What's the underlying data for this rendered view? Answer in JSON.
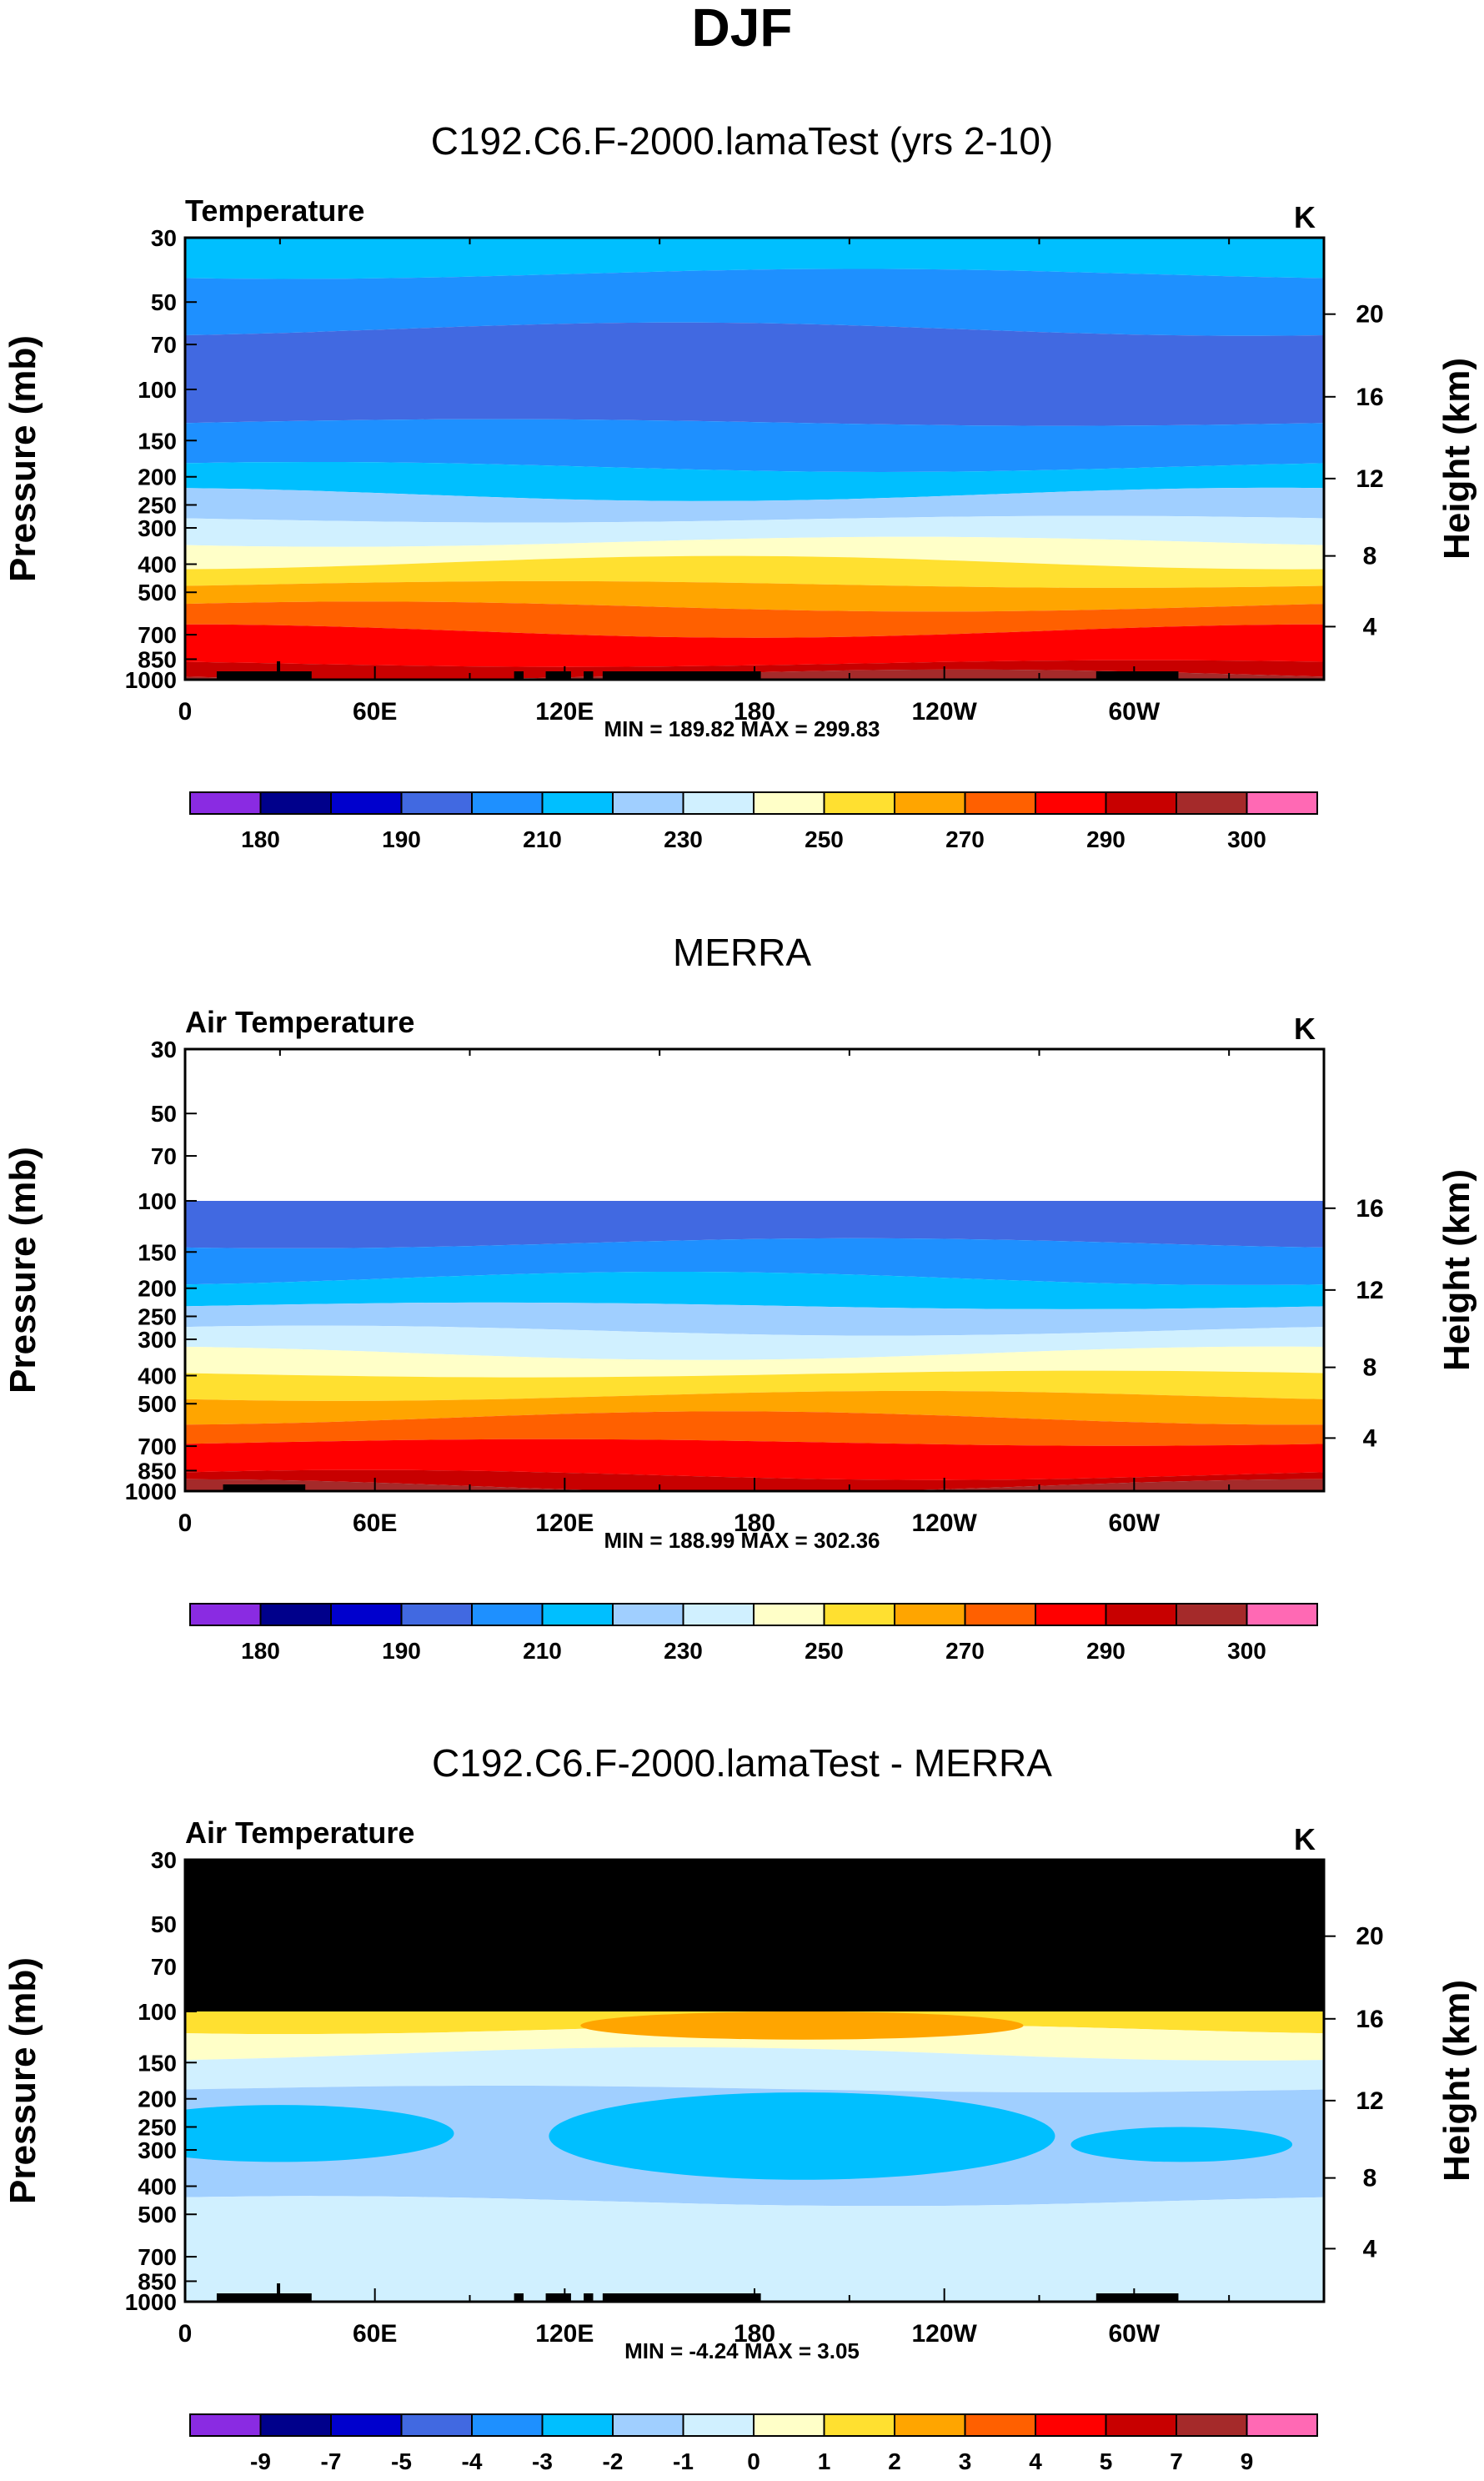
{
  "page": {
    "title": "DJF"
  },
  "colors": {
    "temp_bar": [
      "#8a2be2",
      "#00008b",
      "#0000cd",
      "#4169e1",
      "#1e90ff",
      "#00bfff",
      "#a0cfff",
      "#d0f0ff",
      "#ffffc8",
      "#ffe030",
      "#ffa500",
      "#ff6000",
      "#ff0000",
      "#c80000",
      "#a52a2a",
      "#ff69b4"
    ],
    "diff_bar": [
      "#8a2be2",
      "#00008b",
      "#0000cd",
      "#4169e1",
      "#1e90ff",
      "#00bfff",
      "#a0cfff",
      "#d0f0ff",
      "#ffffc8",
      "#ffe030",
      "#ffa500",
      "#ff6000",
      "#ff0000",
      "#c80000",
      "#a52a2a",
      "#ff69b4"
    ],
    "missing": "#000000",
    "terrain": "#000000"
  },
  "chart_data": [
    {
      "type": "contour",
      "title": "C192.C6.F-2000.lamaTest (yrs 2-10)",
      "left_label": "Temperature",
      "units": "K",
      "ylabel": "Pressure (mb)",
      "y2label": "Height (km)",
      "x_ticks": [
        "0",
        "60E",
        "120E",
        "180",
        "120W",
        "60W"
      ],
      "y_ticks": [
        "30",
        "50",
        "70",
        "100",
        "150",
        "200",
        "250",
        "300",
        "400",
        "500",
        "700",
        "850",
        "1000"
      ],
      "y2_ticks": [
        "20",
        "16",
        "12",
        "8",
        "4"
      ],
      "stats": "MIN = 189.82  MAX = 299.83",
      "colorbar_labels": [
        "180",
        "190",
        "210",
        "230",
        "250",
        "270",
        "290",
        "300"
      ],
      "levels": [
        185,
        190,
        200,
        210,
        220,
        230,
        240,
        250,
        260,
        270,
        280,
        290,
        295,
        300
      ],
      "ylim_mb": [
        30,
        1000
      ],
      "data_top_mb": 30,
      "bands": [
        {
          "p_top": 30,
          "p_bottom": 40,
          "color_idx": 5
        },
        {
          "p_top": 40,
          "p_bottom": 62,
          "color_idx": 4
        },
        {
          "p_top": 62,
          "p_bottom": 130,
          "color_idx": 3
        },
        {
          "p_top": 130,
          "p_bottom": 185,
          "color_idx": 4
        },
        {
          "p_top": 185,
          "p_bottom": 230,
          "color_idx": 5
        },
        {
          "p_top": 230,
          "p_bottom": 280,
          "color_idx": 6
        },
        {
          "p_top": 280,
          "p_bottom": 335,
          "color_idx": 7
        },
        {
          "p_top": 335,
          "p_bottom": 395,
          "color_idx": 8
        },
        {
          "p_top": 395,
          "p_bottom": 470,
          "color_idx": 9
        },
        {
          "p_top": 470,
          "p_bottom": 560,
          "color_idx": 10
        },
        {
          "p_top": 560,
          "p_bottom": 680,
          "color_idx": 11
        },
        {
          "p_top": 680,
          "p_bottom": 880,
          "color_idx": 12
        },
        {
          "p_top": 880,
          "p_bottom": 960,
          "color_idx": 13
        },
        {
          "p_top": 960,
          "p_bottom": 1000,
          "color_idx": 14
        }
      ]
    },
    {
      "type": "contour",
      "title": "MERRA",
      "left_label": "Air Temperature",
      "units": "K",
      "ylabel": "Pressure (mb)",
      "y2label": "Height (km)",
      "x_ticks": [
        "0",
        "60E",
        "120E",
        "180",
        "120W",
        "60W"
      ],
      "y_ticks": [
        "30",
        "50",
        "70",
        "100",
        "150",
        "200",
        "250",
        "300",
        "400",
        "500",
        "700",
        "850",
        "1000"
      ],
      "y2_ticks": [
        "16",
        "12",
        "8",
        "4"
      ],
      "stats": "MIN = 188.99  MAX = 302.36",
      "colorbar_labels": [
        "180",
        "190",
        "210",
        "230",
        "250",
        "270",
        "290",
        "300"
      ],
      "levels": [
        185,
        190,
        200,
        210,
        220,
        230,
        240,
        250,
        260,
        270,
        280,
        290,
        295,
        300
      ],
      "ylim_mb": [
        30,
        1000
      ],
      "data_top_mb": 100,
      "bands": [
        {
          "p_top": 100,
          "p_bottom": 140,
          "color_idx": 3
        },
        {
          "p_top": 140,
          "p_bottom": 185,
          "color_idx": 4
        },
        {
          "p_top": 185,
          "p_bottom": 230,
          "color_idx": 5
        },
        {
          "p_top": 230,
          "p_bottom": 280,
          "color_idx": 6
        },
        {
          "p_top": 280,
          "p_bottom": 335,
          "color_idx": 7
        },
        {
          "p_top": 335,
          "p_bottom": 395,
          "color_idx": 8
        },
        {
          "p_top": 395,
          "p_bottom": 470,
          "color_idx": 9
        },
        {
          "p_top": 470,
          "p_bottom": 560,
          "color_idx": 10
        },
        {
          "p_top": 560,
          "p_bottom": 680,
          "color_idx": 11
        },
        {
          "p_top": 680,
          "p_bottom": 880,
          "color_idx": 12
        },
        {
          "p_top": 880,
          "p_bottom": 960,
          "color_idx": 13
        },
        {
          "p_top": 960,
          "p_bottom": 1000,
          "color_idx": 14
        }
      ]
    },
    {
      "type": "contour",
      "title": "C192.C6.F-2000.lamaTest - MERRA",
      "left_label": "Air Temperature",
      "units": "K",
      "ylabel": "Pressure (mb)",
      "y2label": "Height (km)",
      "x_ticks": [
        "0",
        "60E",
        "120E",
        "180",
        "120W",
        "60W"
      ],
      "y_ticks": [
        "30",
        "50",
        "70",
        "100",
        "150",
        "200",
        "250",
        "300",
        "400",
        "500",
        "700",
        "850",
        "1000"
      ],
      "y2_ticks": [
        "20",
        "16",
        "12",
        "8",
        "4"
      ],
      "stats": "MIN = -4.24  MAX = 3.05",
      "colorbar_labels": [
        "-9",
        "-7",
        "-5",
        "-4",
        "-3",
        "-2",
        "-1",
        "0",
        "1",
        "2",
        "3",
        "4",
        "5",
        "7",
        "9"
      ],
      "levels": [
        -9,
        -7,
        -5,
        -4,
        -3,
        -2,
        -1,
        0,
        1,
        2,
        3,
        4,
        5,
        7,
        9
      ],
      "ylim_mb": [
        30,
        1000
      ],
      "missing_above_mb": 100,
      "bands": [
        {
          "p_top": 100,
          "p_bottom": 115,
          "color_idx": 9
        },
        {
          "p_top": 115,
          "p_bottom": 140,
          "color_idx": 8
        },
        {
          "p_top": 140,
          "p_bottom": 185,
          "color_idx": 7
        },
        {
          "p_top": 185,
          "p_bottom": 450,
          "color_idx": 6
        },
        {
          "p_top": 450,
          "p_bottom": 1000,
          "color_idx": 7
        }
      ],
      "blobs": [
        {
          "lon": 30,
          "p_top": 210,
          "p_bottom": 330,
          "lon_width": 55,
          "color_idx": 5
        },
        {
          "lon": 195,
          "p_top": 190,
          "p_bottom": 380,
          "lon_width": 80,
          "color_idx": 5
        },
        {
          "lon": 315,
          "p_top": 250,
          "p_bottom": 330,
          "lon_width": 35,
          "color_idx": 5
        },
        {
          "lon": 195,
          "p_top": 100,
          "p_bottom": 125,
          "lon_width": 70,
          "color_idx": 10
        }
      ]
    }
  ]
}
